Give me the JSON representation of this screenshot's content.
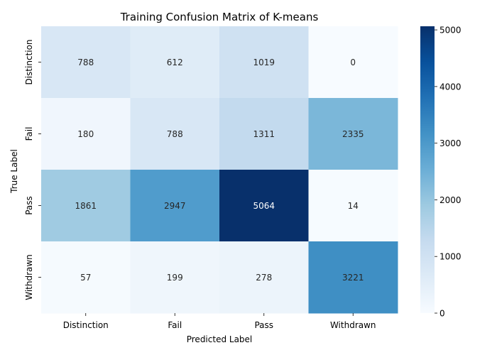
{
  "chart_data": {
    "type": "heatmap",
    "title": "Training Confusion Matrix of K-means",
    "xlabel": "Predicted Label",
    "ylabel": "True Label",
    "x_categories": [
      "Distinction",
      "Fail",
      "Pass",
      "Withdrawn"
    ],
    "y_categories": [
      "Distinction",
      "Fail",
      "Pass",
      "Withdrawn"
    ],
    "values": [
      [
        788,
        612,
        1019,
        0
      ],
      [
        180,
        788,
        1311,
        2335
      ],
      [
        1861,
        2947,
        5064,
        14
      ],
      [
        57,
        199,
        278,
        3221
      ]
    ],
    "colorscale": "Blues",
    "vmin": 0,
    "vmax": 5064,
    "colorbar_ticks": [
      0,
      1000,
      2000,
      3000,
      4000,
      5000
    ]
  }
}
